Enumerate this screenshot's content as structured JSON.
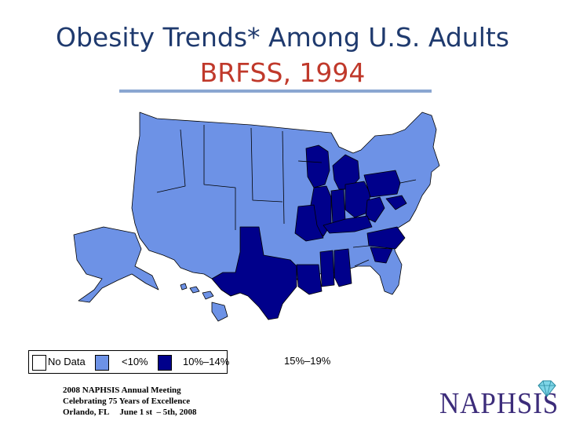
{
  "slide": {
    "title_line1": "Obesity Trends* Among U.S. Adults",
    "title_line2": "BRFSS, 1994",
    "title_line2_color": "#c0392b",
    "divider_color": "#8aa6d1"
  },
  "legend": {
    "items": [
      {
        "label": "No Data",
        "color": "#ffffff"
      },
      {
        "label": "<10%",
        "color": "#6d92e6"
      },
      {
        "label": "10%–14%",
        "color": "#00008b"
      }
    ],
    "outside_label": "15%–19%"
  },
  "map": {
    "colors": {
      "lt10": "#6d92e6",
      "p10_14": "#00008b",
      "border": "#000000"
    },
    "category_10_14_states": [
      "WI",
      "MI",
      "IN",
      "OH",
      "PA",
      "WV",
      "KY",
      "TX",
      "LA",
      "MS",
      "AL",
      "SC",
      "NC",
      "MO",
      "IL",
      "DE",
      "MD"
    ]
  },
  "footer": {
    "line1": "2008 NAPHSIS Annual Meeting",
    "line2": "Celebrating 75 Years of Excellence",
    "line3": "Orlando, FL     June 1 st  – 5th, 2008"
  },
  "logo": {
    "text": "NAPHSIS"
  }
}
